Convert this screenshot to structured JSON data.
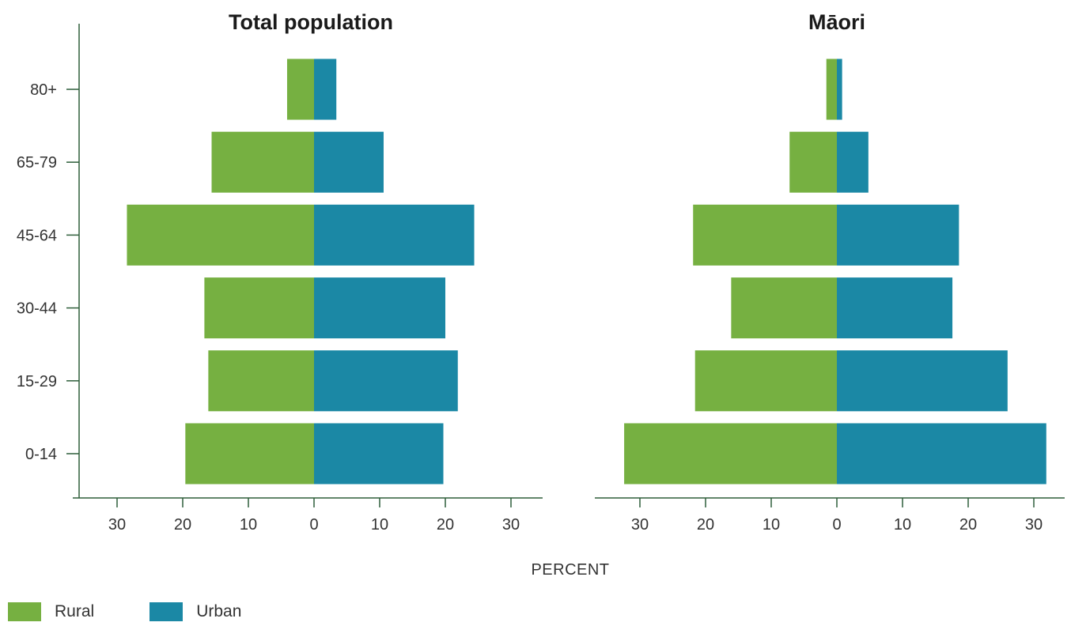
{
  "chart_data": {
    "type": "bar",
    "orientation": "horizontal",
    "layout": "population-pyramid",
    "categories": [
      "80+",
      "65-79",
      "45-64",
      "30-44",
      "15-29",
      "0-14"
    ],
    "xlabel": "PERCENT",
    "xlim": [
      -35,
      35
    ],
    "xticks": [
      -30,
      -20,
      -10,
      0,
      10,
      20,
      30
    ],
    "xtick_labels": [
      "30",
      "20",
      "10",
      "0",
      "10",
      "20",
      "30"
    ],
    "legend": {
      "placement": "bottom-left"
    },
    "series_styles": [
      {
        "name": "Rural",
        "color": "#76b041",
        "side": "left"
      },
      {
        "name": "Urban",
        "color": "#1b88a5",
        "side": "right"
      }
    ],
    "panels": [
      {
        "title": "Total population",
        "series": [
          {
            "name": "Rural",
            "values": [
              4.1,
              15.6,
              28.5,
              16.7,
              16.1,
              19.6
            ]
          },
          {
            "name": "Urban",
            "values": [
              3.4,
              10.6,
              24.4,
              20.0,
              21.9,
              19.7
            ]
          }
        ]
      },
      {
        "title": "Māori",
        "series": [
          {
            "name": "Rural",
            "values": [
              1.6,
              7.2,
              21.9,
              16.1,
              21.6,
              32.4
            ]
          },
          {
            "name": "Urban",
            "values": [
              0.8,
              4.8,
              18.6,
              17.6,
              26.0,
              31.9
            ]
          }
        ]
      }
    ]
  }
}
